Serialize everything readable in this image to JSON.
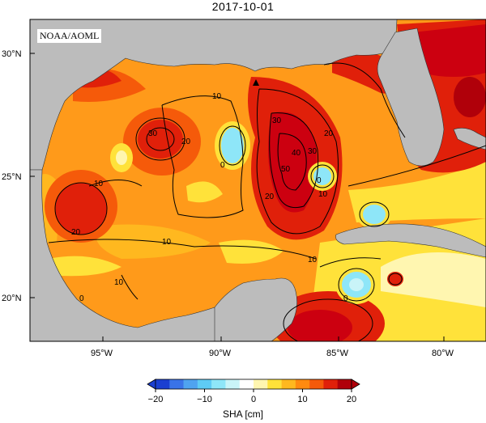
{
  "title": "2017-10-01",
  "credit": "NOAA/AOML",
  "axes": {
    "lon_ticks": [
      "95°W",
      "90°W",
      "85°W",
      "80°W"
    ],
    "lat_ticks": [
      "30°N",
      "25°N",
      "20°N"
    ]
  },
  "colorbar": {
    "label": "SHA [cm]",
    "ticks": [
      "-20",
      "-10",
      "0",
      "10",
      "20"
    ],
    "range": [
      -20,
      20
    ],
    "colors": [
      "#1a3fd1",
      "#3a73e8",
      "#4fa3f0",
      "#5ecbf5",
      "#8ee6f8",
      "#c9f4f8",
      "#ffffff",
      "#fff6b0",
      "#ffe23a",
      "#ffb81f",
      "#ff8a10",
      "#f55a0a",
      "#e0200a",
      "#b0000a"
    ]
  },
  "contour_labels": [
    "10",
    "30",
    "20",
    "0",
    "10",
    "20",
    "30",
    "40",
    "50",
    "20",
    "30",
    "0",
    "10",
    "10",
    "20",
    "0",
    "10",
    "10",
    "0",
    "20"
  ],
  "palette": {
    "land": "#bcbcbc",
    "ocean_base": "#ff9a1a",
    "hot": "#e8200a",
    "very_hot": "#cc0010",
    "warm": "#f55a0a",
    "mild": "#ffb81f",
    "yellow": "#ffe23a",
    "pale": "#fff6b0",
    "cyan": "#8ee6f8",
    "light_cyan": "#c9f4f8"
  }
}
